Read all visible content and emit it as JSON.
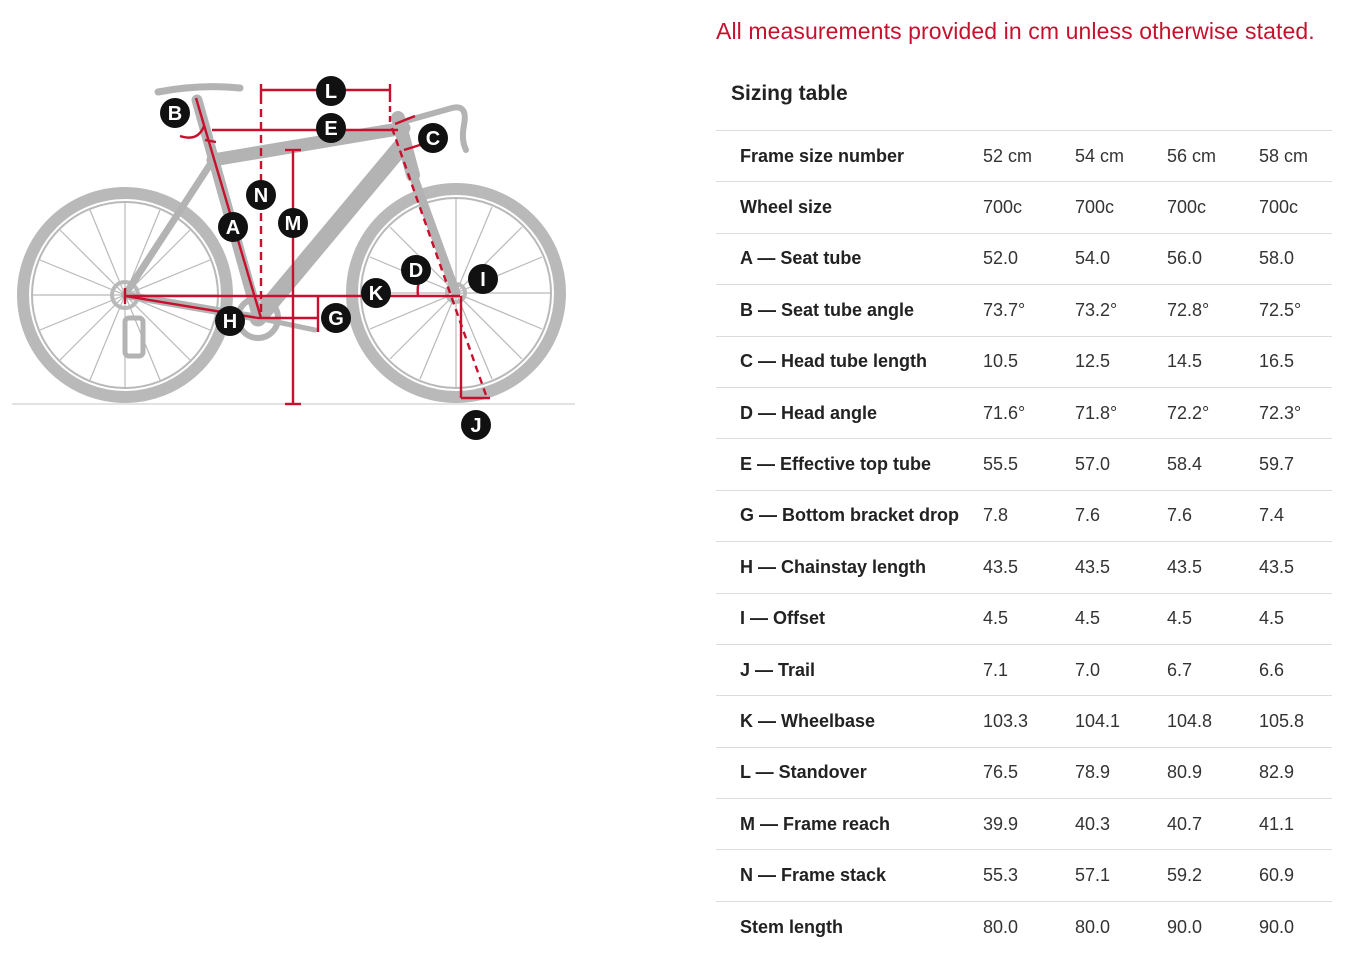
{
  "notice": "All measurements provided in cm unless otherwise stated.",
  "table_title": "Sizing table",
  "diagram": {
    "labels": [
      "A",
      "B",
      "C",
      "D",
      "E",
      "G",
      "H",
      "I",
      "J",
      "K",
      "L",
      "M",
      "N"
    ],
    "colors": {
      "frame": "#b9b9b9",
      "measure": "#c8102e",
      "bubble": "#111111"
    }
  },
  "rows": [
    {
      "label": "Frame size number",
      "values": [
        "52 cm",
        "54 cm",
        "56 cm",
        "58 cm"
      ]
    },
    {
      "label": "Wheel size",
      "values": [
        "700c",
        "700c",
        "700c",
        "700c"
      ]
    },
    {
      "label": "A — Seat tube",
      "values": [
        "52.0",
        "54.0",
        "56.0",
        "58.0"
      ]
    },
    {
      "label": "B — Seat tube angle",
      "values": [
        "73.7°",
        "73.2°",
        "72.8°",
        "72.5°"
      ]
    },
    {
      "label": "C — Head tube length",
      "values": [
        "10.5",
        "12.5",
        "14.5",
        "16.5"
      ]
    },
    {
      "label": "D — Head angle",
      "values": [
        "71.6°",
        "71.8°",
        "72.2°",
        "72.3°"
      ]
    },
    {
      "label": "E — Effective top tube",
      "values": [
        "55.5",
        "57.0",
        "58.4",
        "59.7"
      ]
    },
    {
      "label": "G — Bottom bracket drop",
      "values": [
        "7.8",
        "7.6",
        "7.6",
        "7.4"
      ]
    },
    {
      "label": "H — Chainstay length",
      "values": [
        "43.5",
        "43.5",
        "43.5",
        "43.5"
      ]
    },
    {
      "label": "I — Offset",
      "values": [
        "4.5",
        "4.5",
        "4.5",
        "4.5"
      ]
    },
    {
      "label": "J — Trail",
      "values": [
        "7.1",
        "7.0",
        "6.7",
        "6.6"
      ]
    },
    {
      "label": "K — Wheelbase",
      "values": [
        "103.3",
        "104.1",
        "104.8",
        "105.8"
      ]
    },
    {
      "label": "L — Standover",
      "values": [
        "76.5",
        "78.9",
        "80.9",
        "82.9"
      ]
    },
    {
      "label": "M — Frame reach",
      "values": [
        "39.9",
        "40.3",
        "40.7",
        "41.1"
      ]
    },
    {
      "label": "N — Frame stack",
      "values": [
        "55.3",
        "57.1",
        "59.2",
        "60.9"
      ]
    },
    {
      "label": "Stem length",
      "values": [
        "80.0",
        "80.0",
        "90.0",
        "90.0"
      ]
    }
  ]
}
